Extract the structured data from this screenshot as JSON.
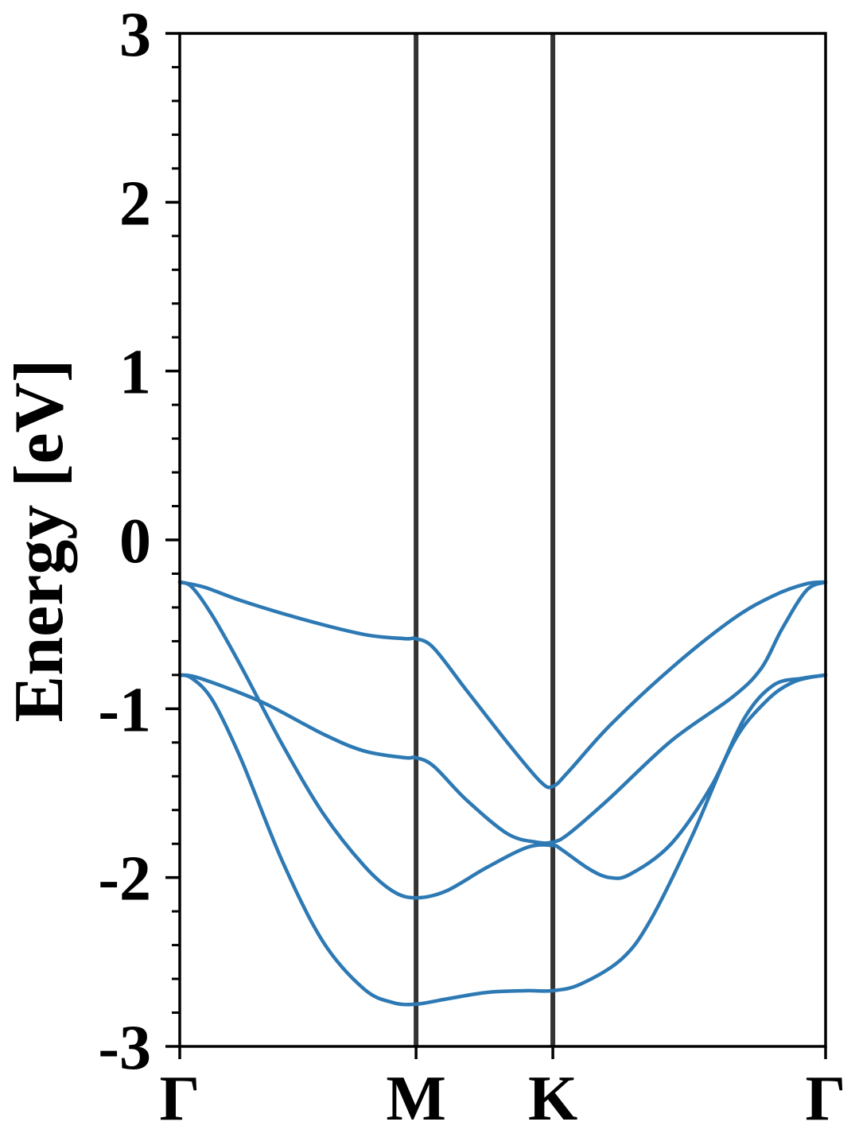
{
  "chart_data": {
    "type": "line",
    "title": "",
    "xlabel": "",
    "ylabel": "Energy [eV]",
    "ylim": [
      -3,
      3
    ],
    "y_ticks": [
      "-3",
      "-2",
      "-1",
      "0",
      "1",
      "2",
      "3"
    ],
    "y_tick_values": [
      -3,
      -2,
      -1,
      0,
      1,
      2,
      3
    ],
    "y_minor_step": 0.2,
    "grid": false,
    "legend": "none",
    "k_points": [
      {
        "label": "Γ",
        "x": 0.0
      },
      {
        "label": "M",
        "x": 0.577
      },
      {
        "label": "K",
        "x": 0.911
      },
      {
        "label": "Γ",
        "x": 1.577
      }
    ],
    "series": [
      {
        "values": [
          [
            0.0,
            -0.25
          ],
          [
            0.06,
            -0.28
          ],
          [
            0.15,
            -0.36
          ],
          [
            0.3,
            -0.47
          ],
          [
            0.45,
            -0.56
          ],
          [
            0.55,
            -0.585
          ],
          [
            0.577,
            -0.585
          ],
          [
            0.62,
            -0.64
          ],
          [
            0.7,
            -0.89
          ],
          [
            0.8,
            -1.2
          ],
          [
            0.88,
            -1.43
          ],
          [
            0.911,
            -1.46
          ],
          [
            0.95,
            -1.37
          ],
          [
            1.05,
            -1.1
          ],
          [
            1.2,
            -0.76
          ],
          [
            1.35,
            -0.47
          ],
          [
            1.45,
            -0.33
          ],
          [
            1.53,
            -0.26
          ],
          [
            1.577,
            -0.25
          ]
        ]
      },
      {
        "values": [
          [
            0.0,
            -0.25
          ],
          [
            0.03,
            -0.28
          ],
          [
            0.08,
            -0.45
          ],
          [
            0.15,
            -0.75
          ],
          [
            0.25,
            -1.21
          ],
          [
            0.35,
            -1.62
          ],
          [
            0.45,
            -1.93
          ],
          [
            0.52,
            -2.08
          ],
          [
            0.577,
            -2.12
          ],
          [
            0.65,
            -2.08
          ],
          [
            0.75,
            -1.94
          ],
          [
            0.85,
            -1.82
          ],
          [
            0.911,
            -1.81
          ],
          [
            0.93,
            -1.83
          ],
          [
            1.0,
            -1.95
          ],
          [
            1.05,
            -2.0
          ],
          [
            1.1,
            -1.98
          ],
          [
            1.2,
            -1.8
          ],
          [
            1.3,
            -1.45
          ],
          [
            1.38,
            -1.05
          ],
          [
            1.45,
            -0.86
          ],
          [
            1.52,
            -0.82
          ],
          [
            1.577,
            -0.8
          ]
        ]
      },
      {
        "values": [
          [
            0.0,
            -0.8
          ],
          [
            0.05,
            -0.82
          ],
          [
            0.2,
            -0.96
          ],
          [
            0.35,
            -1.15
          ],
          [
            0.45,
            -1.25
          ],
          [
            0.55,
            -1.29
          ],
          [
            0.577,
            -1.29
          ],
          [
            0.62,
            -1.34
          ],
          [
            0.7,
            -1.54
          ],
          [
            0.8,
            -1.74
          ],
          [
            0.87,
            -1.79
          ],
          [
            0.911,
            -1.79
          ],
          [
            0.95,
            -1.74
          ],
          [
            1.05,
            -1.53
          ],
          [
            1.2,
            -1.19
          ],
          [
            1.35,
            -0.93
          ],
          [
            1.42,
            -0.76
          ],
          [
            1.47,
            -0.53
          ],
          [
            1.53,
            -0.3
          ],
          [
            1.577,
            -0.25
          ]
        ]
      },
      {
        "values": [
          [
            0.0,
            -0.8
          ],
          [
            0.03,
            -0.82
          ],
          [
            0.08,
            -0.95
          ],
          [
            0.15,
            -1.3
          ],
          [
            0.25,
            -1.9
          ],
          [
            0.35,
            -2.38
          ],
          [
            0.45,
            -2.66
          ],
          [
            0.52,
            -2.74
          ],
          [
            0.577,
            -2.75
          ],
          [
            0.65,
            -2.72
          ],
          [
            0.75,
            -2.68
          ],
          [
            0.85,
            -2.67
          ],
          [
            0.911,
            -2.67
          ],
          [
            0.98,
            -2.63
          ],
          [
            1.08,
            -2.48
          ],
          [
            1.15,
            -2.25
          ],
          [
            1.25,
            -1.76
          ],
          [
            1.35,
            -1.21
          ],
          [
            1.43,
            -0.96
          ],
          [
            1.5,
            -0.84
          ],
          [
            1.577,
            -0.8
          ]
        ]
      }
    ],
    "colors": {
      "band": "#2d79b4",
      "kline": "#333333",
      "axis": "#000000"
    }
  }
}
